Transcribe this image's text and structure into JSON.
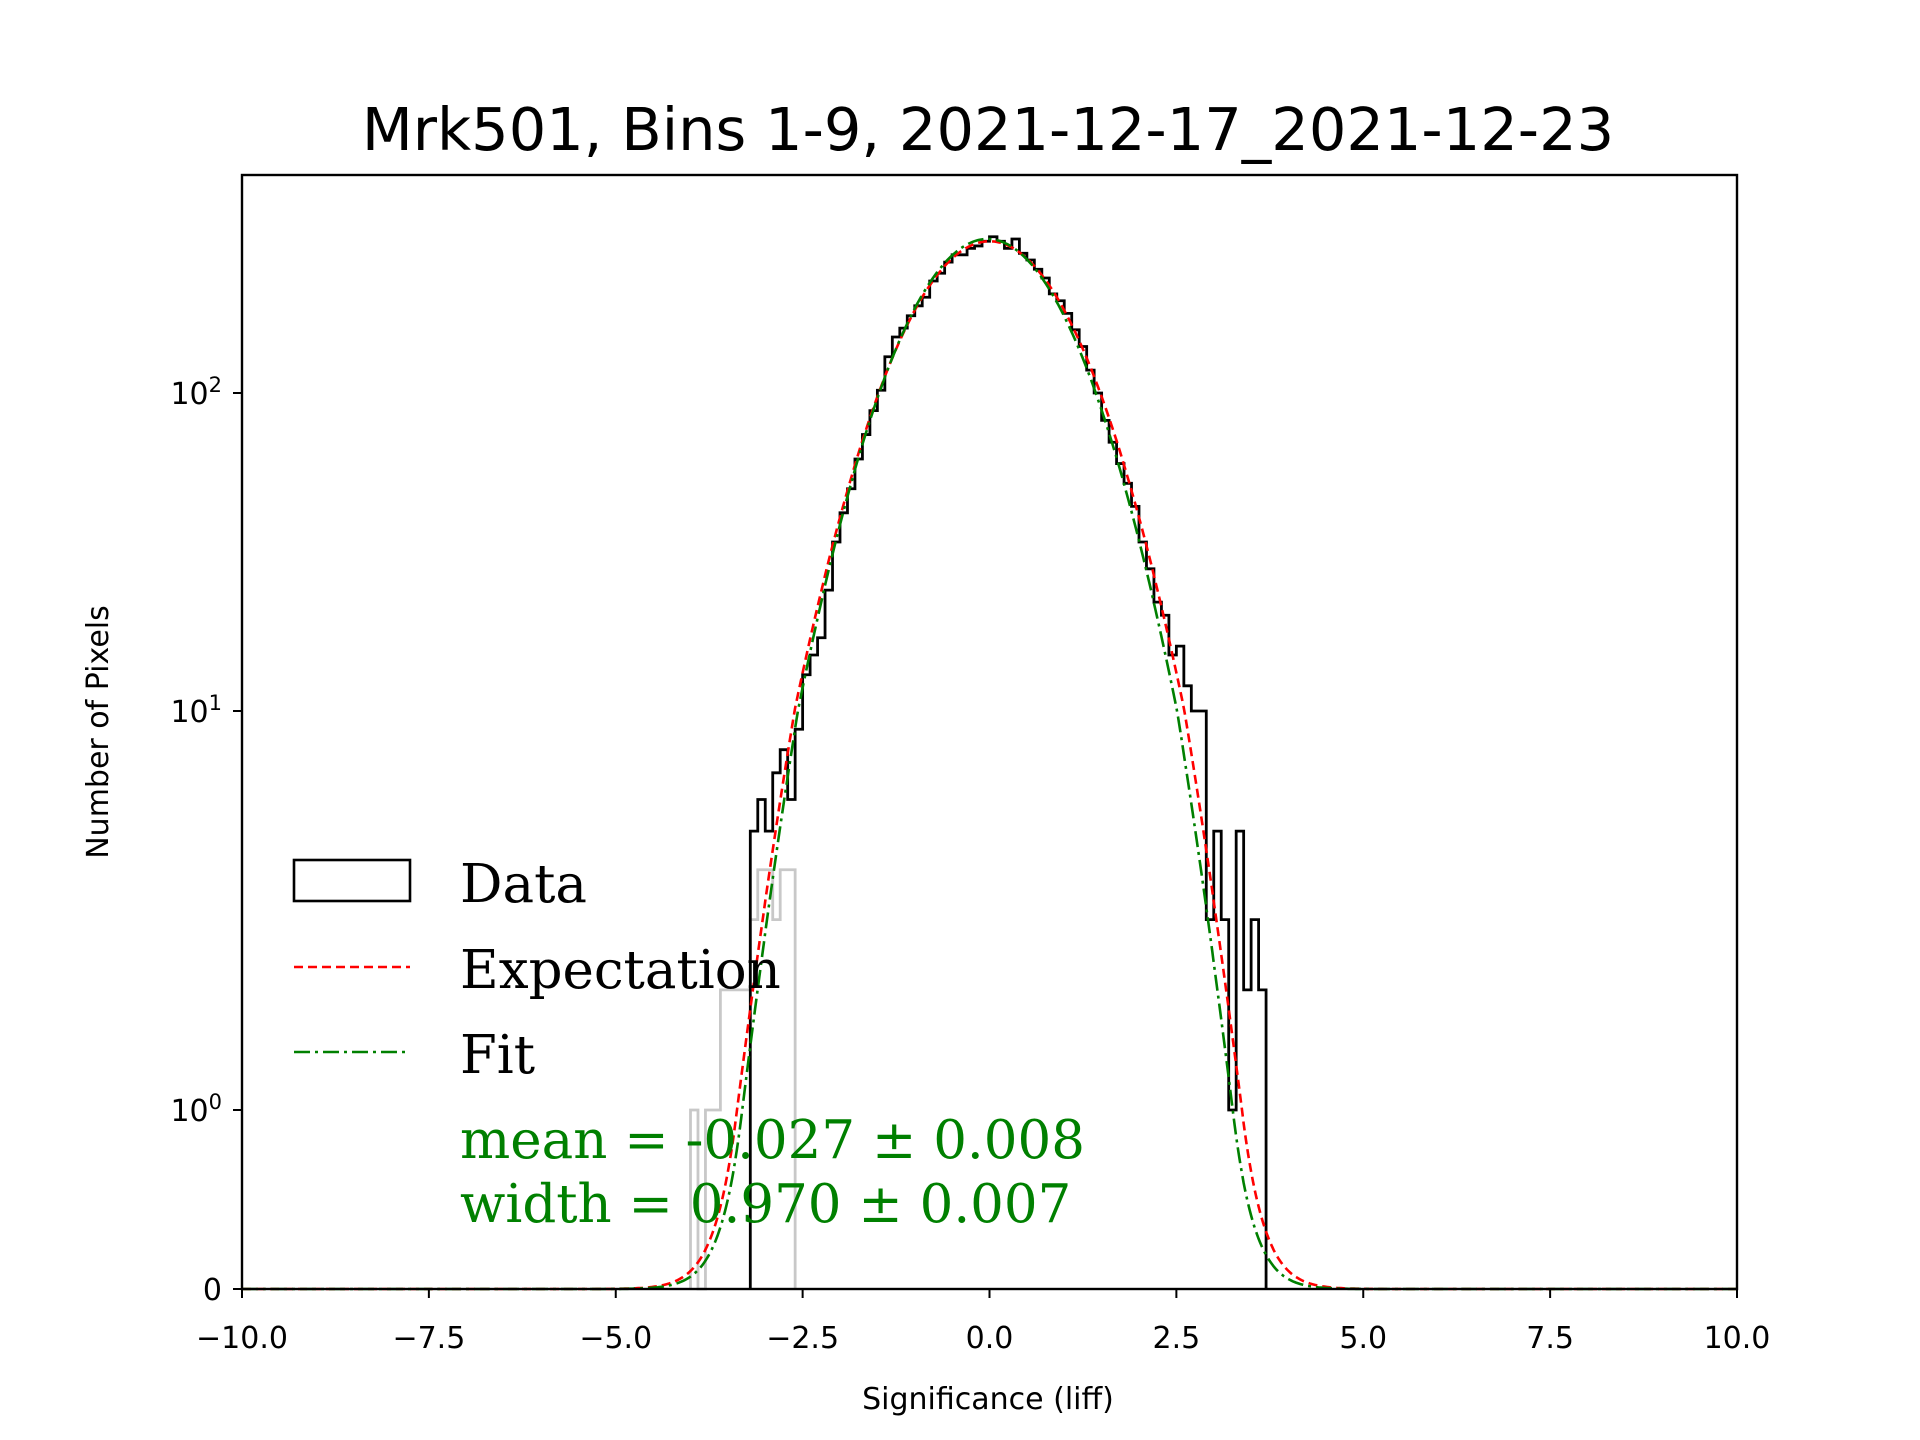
{
  "chart_data": {
    "type": "histogram",
    "title": "Mrk501, Bins 1-9, 2021-12-17_2021-12-23",
    "xlabel": "Significance (liff)",
    "ylabel": "Number of Pixels",
    "xlim": [
      -10,
      10
    ],
    "yscale": "symlog",
    "x_ticks": [
      {
        "value": -10,
        "label": "−10.0"
      },
      {
        "value": -7.5,
        "label": "−7.5"
      },
      {
        "value": -5,
        "label": "−5.0"
      },
      {
        "value": -2.5,
        "label": "−2.5"
      },
      {
        "value": 0,
        "label": "0.0"
      },
      {
        "value": 2.5,
        "label": "2.5"
      },
      {
        "value": 5,
        "label": "5.0"
      },
      {
        "value": 7.5,
        "label": "7.5"
      },
      {
        "value": 10,
        "label": "10.0"
      }
    ],
    "y_ticks": [
      {
        "value": 0,
        "base": "0",
        "exp": ""
      },
      {
        "value": 1,
        "base": "10",
        "exp": "0"
      },
      {
        "value": 10,
        "base": "10",
        "exp": "1"
      },
      {
        "value": 100,
        "base": "10",
        "exp": "2"
      }
    ],
    "bin_width": 0.1,
    "data_series": {
      "name": "Data",
      "color": "#000000",
      "bin_start": -3.2,
      "counts": [
        5,
        6,
        5,
        7,
        8,
        6,
        9,
        13,
        15,
        17,
        24,
        34,
        42,
        50,
        62,
        74,
        88,
        102,
        130,
        150,
        160,
        175,
        188,
        200,
        225,
        238,
        258,
        272,
        272,
        285,
        290,
        300,
        310,
        300,
        285,
        305,
        275,
        262,
        245,
        230,
        205,
        195,
        178,
        158,
        140,
        118,
        100,
        82,
        70,
        60,
        52,
        44,
        34,
        28,
        22,
        20,
        15,
        16,
        12,
        10,
        10,
        3,
        5,
        3,
        1,
        5,
        2,
        3,
        2
      ]
    },
    "low_stat_series": {
      "color": "#c8c8c8",
      "bin_start": -4.0,
      "counts": [
        1,
        0,
        1,
        1,
        2,
        2,
        2,
        2,
        3,
        4,
        4,
        3,
        4,
        4
      ]
    },
    "expectation": {
      "name": "Expectation",
      "color": "#ff0000",
      "mean": 0.0,
      "width": 1.0,
      "peak": 300
    },
    "fit": {
      "name": "Fit",
      "color": "#008000",
      "mean": -0.027,
      "width": 0.97,
      "peak": 305
    },
    "legend": {
      "position": "lower-left",
      "entries": [
        "Data",
        "Expectation",
        "Fit"
      ]
    },
    "annotations": {
      "mean_text": "mean = -0.027 ± 0.008",
      "width_text": "width = 0.970 ± 0.007",
      "color": "#008000"
    }
  }
}
